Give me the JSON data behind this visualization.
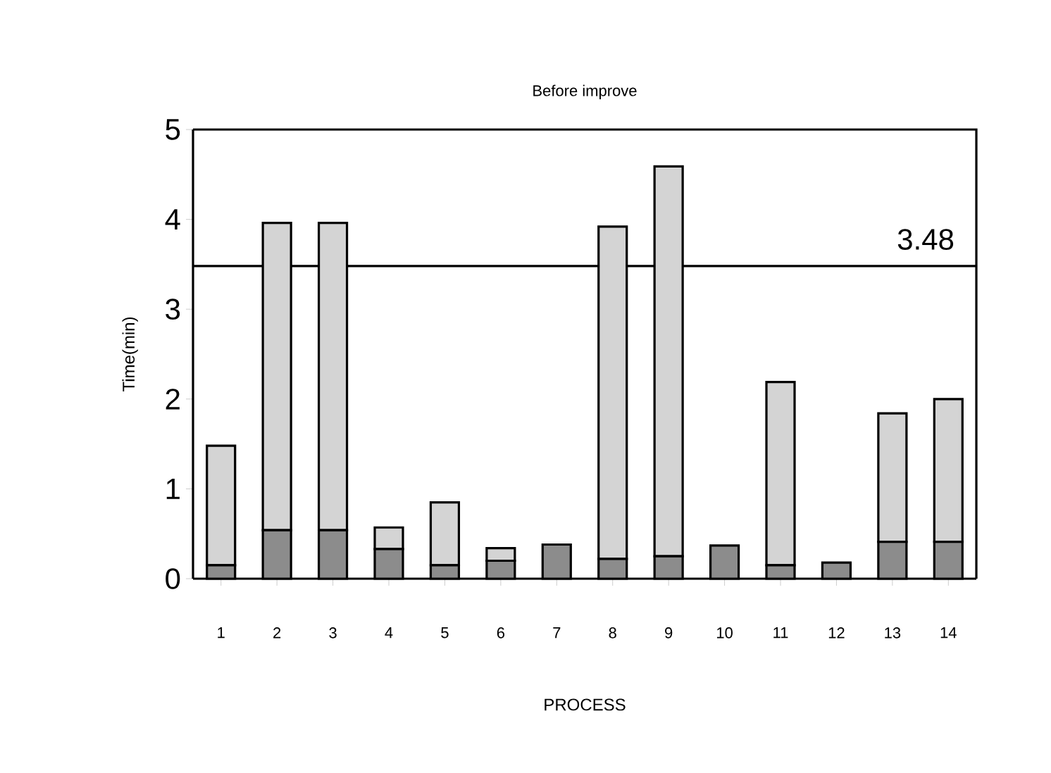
{
  "chart_data": {
    "type": "bar",
    "stacked": true,
    "title": "Before improve",
    "xlabel": "PROCESS",
    "ylabel": "Time(min)",
    "categories": [
      "1",
      "2",
      "3",
      "4",
      "5",
      "6",
      "7",
      "8",
      "9",
      "10",
      "11",
      "12",
      "13",
      "14"
    ],
    "series": [
      {
        "color": "#8c8c8c",
        "values": [
          0.15,
          0.54,
          0.54,
          0.33,
          0.15,
          0.2,
          0.38,
          0.22,
          0.25,
          0.37,
          0.15,
          0.18,
          0.41,
          0.41
        ]
      },
      {
        "color": "#d4d4d4",
        "values": [
          1.33,
          3.42,
          3.42,
          0.24,
          0.7,
          0.14,
          0,
          3.7,
          4.34,
          0,
          2.04,
          0,
          1.43,
          1.59
        ]
      }
    ],
    "ylim": [
      0,
      5
    ],
    "yticks": [
      0,
      1,
      2,
      3,
      4,
      5
    ],
    "ref_lines": [
      {
        "axis": "y",
        "value": 3.48,
        "label": "3.48",
        "color": "#000000"
      }
    ],
    "grid": false
  }
}
